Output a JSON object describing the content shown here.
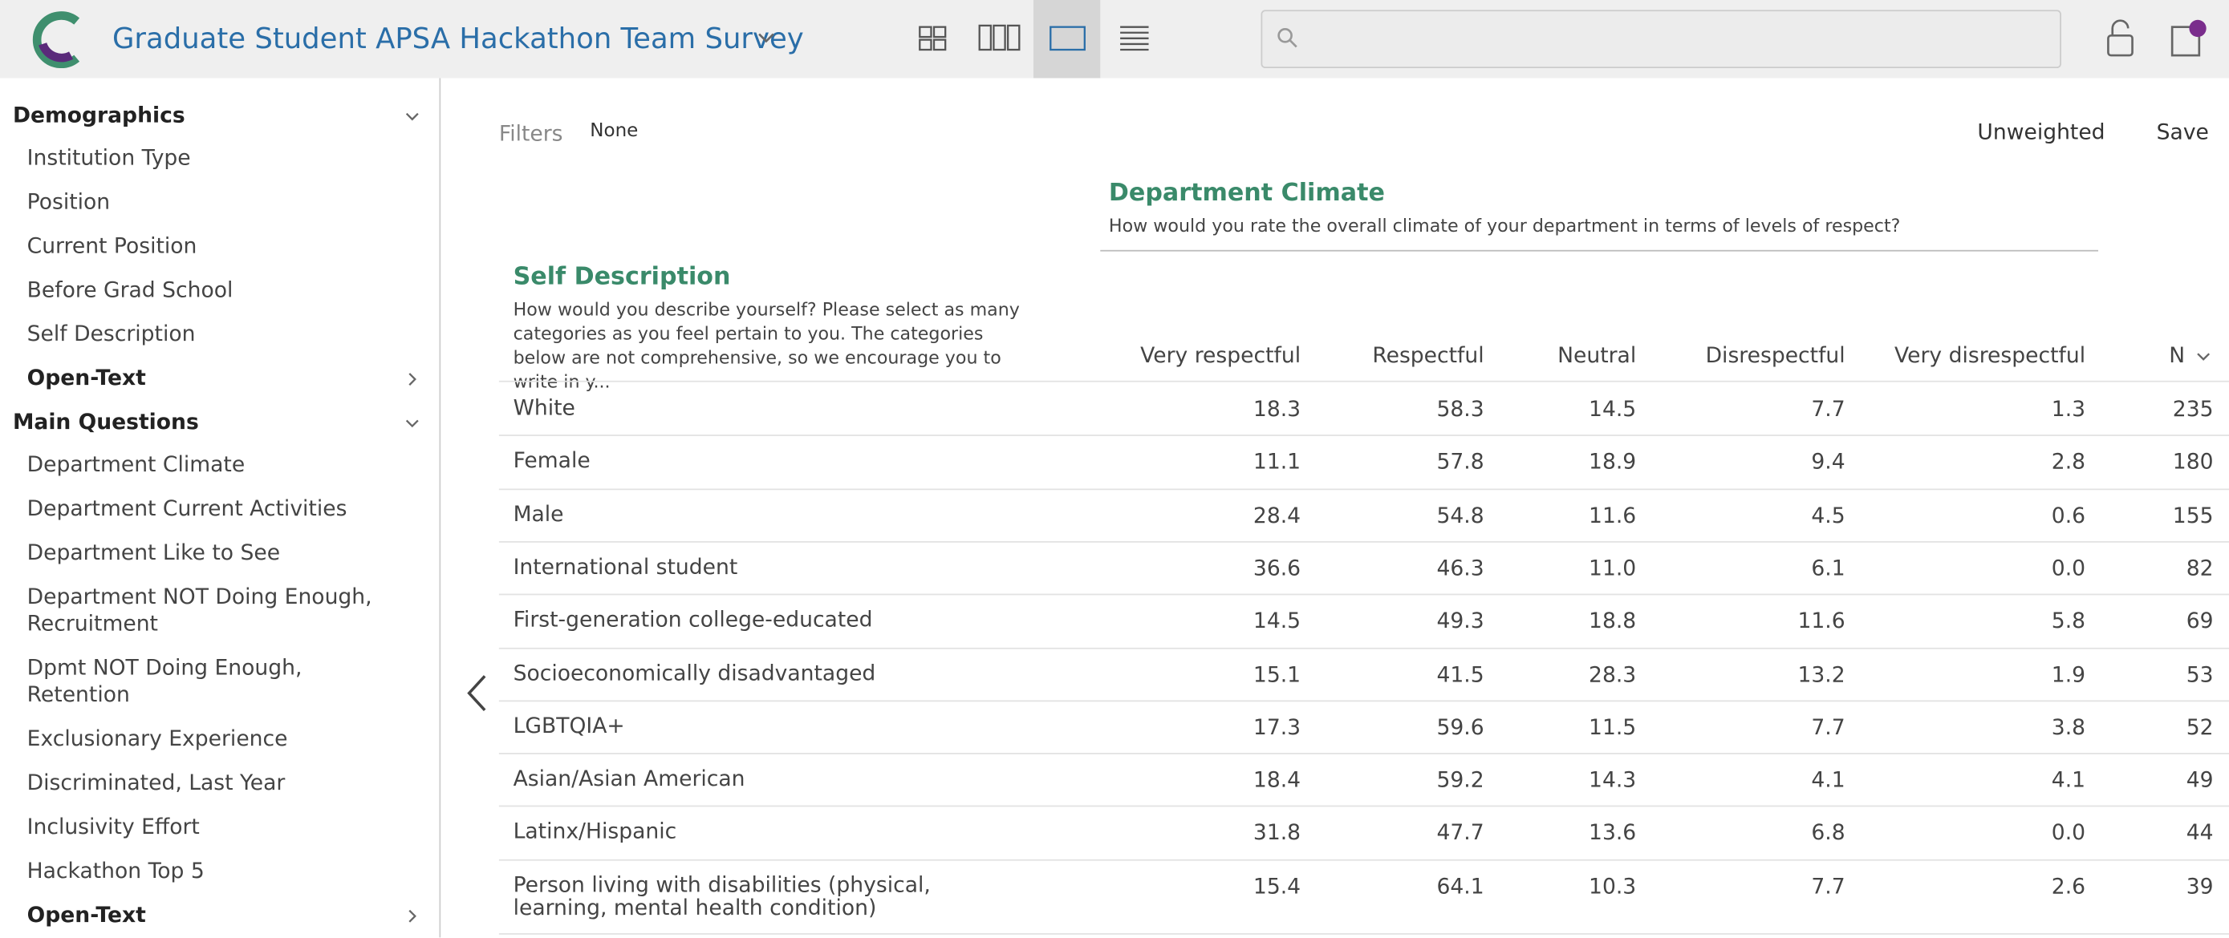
{
  "header": {
    "title": "Graduate Student APSA Hackathon Team Survey"
  },
  "sidebar": {
    "sections": [
      {
        "title": "Demographics",
        "items": [
          "Institution Type",
          "Position",
          "Current Position",
          "Before Grad School",
          "Self Description"
        ],
        "subsection": "Open-Text"
      },
      {
        "title": "Main Questions",
        "items": [
          "Department Climate",
          "Department Current Activities",
          "Department Like to See",
          "Department NOT Doing Enough, Recruitment",
          "Dpmt NOT Doing Enough, Retention",
          "Exclusionary Experience",
          "Discriminated, Last Year",
          "Inclusivity Effort",
          "Hackathon Top 5"
        ],
        "subsection": "Open-Text"
      }
    ]
  },
  "toolbar": {
    "filters_label": "Filters",
    "filters_value": "None",
    "weighting": "Unweighted",
    "save": "Save"
  },
  "table": {
    "column_title": "Department Climate",
    "column_question": "How would you rate the overall climate of your department in terms of levels of respect?",
    "row_title": "Self Description",
    "row_question": "How would you describe yourself? Please select as many categories as you feel pertain to you. The categories below are not comprehensive, so we encourage you to write in y...",
    "columns": [
      "Very respectful",
      "Respectful",
      "Neutral",
      "Disrespectful",
      "Very disrespectful",
      "N"
    ],
    "rows": [
      {
        "label": "White",
        "values": [
          "18.3",
          "58.3",
          "14.5",
          "7.7",
          "1.3",
          "235"
        ]
      },
      {
        "label": "Female",
        "values": [
          "11.1",
          "57.8",
          "18.9",
          "9.4",
          "2.8",
          "180"
        ]
      },
      {
        "label": "Male",
        "values": [
          "28.4",
          "54.8",
          "11.6",
          "4.5",
          "0.6",
          "155"
        ]
      },
      {
        "label": "International student",
        "values": [
          "36.6",
          "46.3",
          "11.0",
          "6.1",
          "0.0",
          "82"
        ]
      },
      {
        "label": "First-generation college-educated",
        "values": [
          "14.5",
          "49.3",
          "18.8",
          "11.6",
          "5.8",
          "69"
        ]
      },
      {
        "label": "Socioeconomically disadvantaged",
        "values": [
          "15.1",
          "41.5",
          "28.3",
          "13.2",
          "1.9",
          "53"
        ]
      },
      {
        "label": "LGBTQIA+",
        "values": [
          "17.3",
          "59.6",
          "11.5",
          "7.7",
          "3.8",
          "52"
        ]
      },
      {
        "label": "Asian/Asian American",
        "values": [
          "18.4",
          "59.2",
          "14.3",
          "4.1",
          "4.1",
          "49"
        ]
      },
      {
        "label": "Latinx/Hispanic",
        "values": [
          "31.8",
          "47.7",
          "13.6",
          "6.8",
          "0.0",
          "44"
        ]
      },
      {
        "label": "Person living with disabilities (physical, learning, mental health condition)",
        "values": [
          "15.4",
          "64.1",
          "10.3",
          "7.7",
          "2.6",
          "39"
        ]
      }
    ]
  }
}
